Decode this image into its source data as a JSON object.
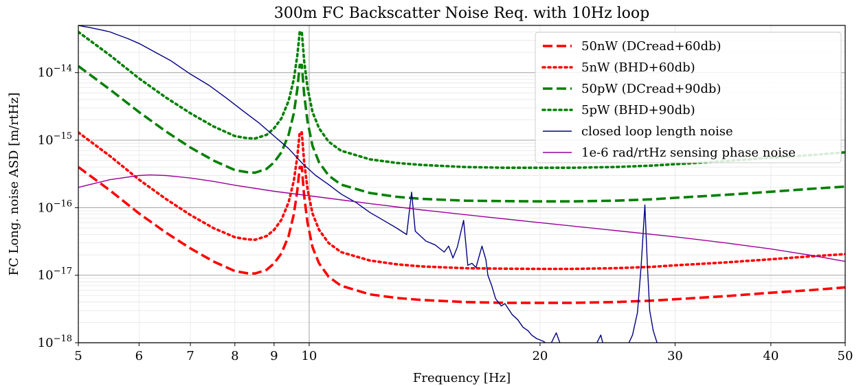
{
  "chart_data": {
    "type": "line",
    "title": "300m FC Backscatter Noise Req. with 10Hz loop",
    "xlabel": "Frequency [Hz]",
    "ylabel": "FC Long. noise ASD [m/rtHz]",
    "xscale": "log",
    "yscale": "log",
    "xlim": [
      5,
      50
    ],
    "ylim": [
      1e-18,
      5e-14
    ],
    "grid": true,
    "legend_position": "top-right",
    "x_ticks": [
      {
        "value": 5,
        "label": "5"
      },
      {
        "value": 6,
        "label": "6"
      },
      {
        "value": 7,
        "label": "7"
      },
      {
        "value": 8,
        "label": "8"
      },
      {
        "value": 9,
        "label": "9"
      },
      {
        "value": 10,
        "label": "10"
      },
      {
        "value": 20,
        "label": "20"
      },
      {
        "value": 30,
        "label": "30"
      },
      {
        "value": 40,
        "label": "40"
      },
      {
        "value": 50,
        "label": "50"
      }
    ],
    "y_ticks": [
      {
        "value": 1e-18,
        "base": "10",
        "exp": "−18"
      },
      {
        "value": 1e-17,
        "base": "10",
        "exp": "−17"
      },
      {
        "value": 1e-16,
        "base": "10",
        "exp": "−16"
      },
      {
        "value": 1e-15,
        "base": "10",
        "exp": "−15"
      },
      {
        "value": 1e-14,
        "base": "10",
        "exp": "−14"
      }
    ],
    "series": [
      {
        "name": "50nW (DCread+60db)",
        "color": "#ff0000",
        "style": "dashed",
        "x": [
          5,
          5.5,
          6,
          6.5,
          7,
          7.5,
          8,
          8.3,
          8.5,
          8.8,
          9,
          9.2,
          9.4,
          9.55,
          9.65,
          9.72,
          9.78,
          9.85,
          9.95,
          10.1,
          10.3,
          10.6,
          11,
          12,
          13,
          14,
          16,
          18,
          20,
          22,
          25,
          28,
          30,
          35,
          40,
          45,
          50
        ],
        "y": [
          4e-16,
          1.8e-16,
          8.2e-17,
          4.3e-17,
          2.5e-17,
          1.6e-17,
          1.15e-17,
          1.07e-17,
          1.06e-17,
          1.2e-17,
          1.5e-17,
          2.1e-17,
          3.8e-17,
          8e-17,
          1.8e-16,
          4e-16,
          4e-16,
          1.5e-16,
          6e-17,
          2.6e-17,
          1.5e-17,
          9.5e-18,
          7e-18,
          5.2e-18,
          4.6e-18,
          4.3e-18,
          4e-18,
          3.9e-18,
          3.9e-18,
          3.9e-18,
          4e-18,
          4.2e-18,
          4.4e-18,
          4.9e-18,
          5.5e-18,
          6e-18,
          6.6e-18
        ]
      },
      {
        "name": "5nW (BHD+60db)",
        "color": "#ff0000",
        "style": "dotted",
        "x": [
          5,
          5.5,
          6,
          6.5,
          7,
          7.5,
          8,
          8.3,
          8.5,
          8.8,
          9,
          9.2,
          9.4,
          9.55,
          9.65,
          9.72,
          9.78,
          9.85,
          9.95,
          10.1,
          10.3,
          10.6,
          11,
          12,
          13,
          14,
          16,
          18,
          20,
          22,
          25,
          28,
          30,
          35,
          40,
          45,
          50
        ],
        "y": [
          1.3e-15,
          5.8e-16,
          2.6e-16,
          1.35e-16,
          7.8e-17,
          5e-17,
          3.65e-17,
          3.4e-17,
          3.35e-17,
          3.8e-17,
          4.7e-17,
          6.6e-17,
          1.2e-16,
          2.5e-16,
          5.7e-16,
          1.3e-15,
          1.3e-15,
          4.8e-16,
          1.9e-16,
          8.2e-17,
          4.7e-17,
          3e-17,
          2.2e-17,
          1.65e-17,
          1.45e-17,
          1.35e-17,
          1.27e-17,
          1.25e-17,
          1.24e-17,
          1.24e-17,
          1.27e-17,
          1.33e-17,
          1.4e-17,
          1.55e-17,
          1.72e-17,
          1.9e-17,
          2.05e-17
        ]
      },
      {
        "name": "50pW (DCread+90db)",
        "color": "#008000",
        "style": "dashed",
        "x": [
          5,
          5.5,
          6,
          6.5,
          7,
          7.5,
          8,
          8.3,
          8.5,
          8.8,
          9,
          9.2,
          9.4,
          9.55,
          9.65,
          9.72,
          9.78,
          9.85,
          9.95,
          10.1,
          10.3,
          10.6,
          11,
          12,
          13,
          14,
          16,
          18,
          20,
          22,
          25,
          28,
          30,
          35,
          40,
          45,
          50
        ],
        "y": [
          1.25e-14,
          5.6e-15,
          2.6e-15,
          1.35e-15,
          7.8e-16,
          5e-16,
          3.6e-16,
          3.35e-16,
          3.3e-16,
          3.75e-16,
          4.7e-16,
          6.6e-16,
          1.2e-15,
          2.5e-15,
          5.7e-15,
          1.3e-14,
          1.3e-14,
          4.8e-15,
          1.9e-15,
          8.2e-16,
          4.7e-16,
          3e-16,
          2.2e-16,
          1.65e-16,
          1.45e-16,
          1.35e-16,
          1.27e-16,
          1.25e-16,
          1.24e-16,
          1.24e-16,
          1.27e-16,
          1.33e-16,
          1.4e-16,
          1.55e-16,
          1.72e-16,
          1.9e-16,
          2.05e-16
        ]
      },
      {
        "name": "5pW (BHD+90db)",
        "color": "#008000",
        "style": "dotted",
        "x": [
          5,
          5.5,
          6,
          6.5,
          7,
          7.5,
          8,
          8.3,
          8.5,
          8.8,
          9,
          9.2,
          9.4,
          9.55,
          9.65,
          9.72,
          9.78,
          9.85,
          9.95,
          10.1,
          10.3,
          10.6,
          11,
          12,
          13,
          14,
          16,
          18,
          20,
          22,
          25,
          28,
          30,
          35,
          40,
          45,
          50
        ],
        "y": [
          4e-14,
          1.8e-14,
          8.2e-15,
          4.3e-15,
          2.5e-15,
          1.6e-15,
          1.15e-15,
          1.07e-15,
          1.06e-15,
          1.2e-15,
          1.5e-15,
          2.1e-15,
          3.8e-15,
          8e-15,
          1.8e-14,
          4e-14,
          4e-14,
          1.5e-14,
          6e-15,
          2.6e-15,
          1.5e-15,
          9.5e-16,
          7e-16,
          5.2e-16,
          4.6e-16,
          4.3e-16,
          4e-16,
          3.9e-16,
          3.9e-16,
          3.9e-16,
          4e-16,
          4.2e-16,
          4.4e-16,
          4.9e-16,
          5.5e-16,
          6e-16,
          6.6e-16
        ]
      },
      {
        "name": "closed loop length noise",
        "color": "#000080",
        "style": "solid",
        "x": [
          5,
          5.2,
          5.4,
          5.5,
          5.6,
          5.8,
          6,
          6.3,
          6.6,
          7,
          7.4,
          7.8,
          8.2,
          8.6,
          9,
          9.4,
          9.8,
          10.2,
          10.6,
          11,
          11.5,
          12,
          12.5,
          13,
          13.4,
          13.6,
          13.75,
          13.9,
          14.2,
          14.6,
          15,
          15.2,
          15.4,
          15.6,
          15.9,
          16.1,
          16.3,
          16.5,
          16.8,
          17,
          17.1,
          17.3,
          17.5,
          17.8,
          18,
          18.4,
          18.7,
          19,
          19.3,
          19.5,
          19.8,
          20.2,
          20.6,
          21,
          21.3,
          21.6,
          22,
          22.5,
          23,
          23.5,
          24,
          24.2,
          24.5,
          25,
          25.5,
          26,
          26.4,
          26.8,
          27.1,
          27.4,
          27.6,
          27.8,
          28.1,
          28.5,
          29,
          29.5
        ],
        "y": [
          5e-14,
          4.6e-14,
          4.2e-14,
          4e-14,
          3.7e-14,
          3.2e-14,
          2.7e-14,
          2e-14,
          1.5e-14,
          9.5e-15,
          6.5e-15,
          4.2e-15,
          2.7e-15,
          1.8e-15,
          1.15e-15,
          7.5e-16,
          4.5e-16,
          3e-16,
          2.2e-16,
          1.6e-16,
          1.2e-16,
          8.5e-17,
          6.5e-17,
          5e-17,
          4e-17,
          1.7e-16,
          4.5e-17,
          4e-17,
          3.2e-17,
          2.8e-17,
          2.2e-17,
          2.7e-17,
          1.8e-17,
          2.6e-17,
          6.5e-17,
          1.4e-17,
          1.5e-17,
          1.3e-17,
          2.7e-17,
          1.7e-17,
          1e-17,
          7e-18,
          4.5e-18,
          3.5e-18,
          3.8e-18,
          2.6e-18,
          2.2e-18,
          1.7e-18,
          1.5e-18,
          1.3e-18,
          1.15e-18,
          1.05e-18,
          9e-19,
          1.4e-18,
          9e-19,
          9e-19,
          1e-18,
          9e-19,
          8e-19,
          8e-19,
          1.3e-18,
          9e-19,
          8e-19,
          7e-19,
          8e-19,
          9e-19,
          1.3e-18,
          2.8e-18,
          1.4e-17,
          1.1e-16,
          1.5e-17,
          3e-18,
          1.5e-18,
          9e-19,
          7e-19,
          6e-19
        ]
      },
      {
        "name": "1e-6 rad/rtHz sensing phase noise",
        "color": "#990099",
        "style": "solid",
        "x": [
          5,
          5.5,
          6,
          6.2,
          6.5,
          7,
          7.5,
          8,
          9,
          10,
          12,
          14,
          17,
          20,
          25,
          30,
          35,
          40,
          45,
          50
        ],
        "y": [
          2e-16,
          2.6e-16,
          3e-16,
          3.05e-16,
          3e-16,
          2.75e-16,
          2.45e-16,
          2.15e-16,
          1.75e-16,
          1.5e-16,
          1.15e-16,
          9.3e-17,
          7.3e-17,
          6e-17,
          4.6e-17,
          3.7e-17,
          3e-17,
          2.45e-17,
          1.98e-17,
          1.6e-17
        ]
      }
    ]
  }
}
